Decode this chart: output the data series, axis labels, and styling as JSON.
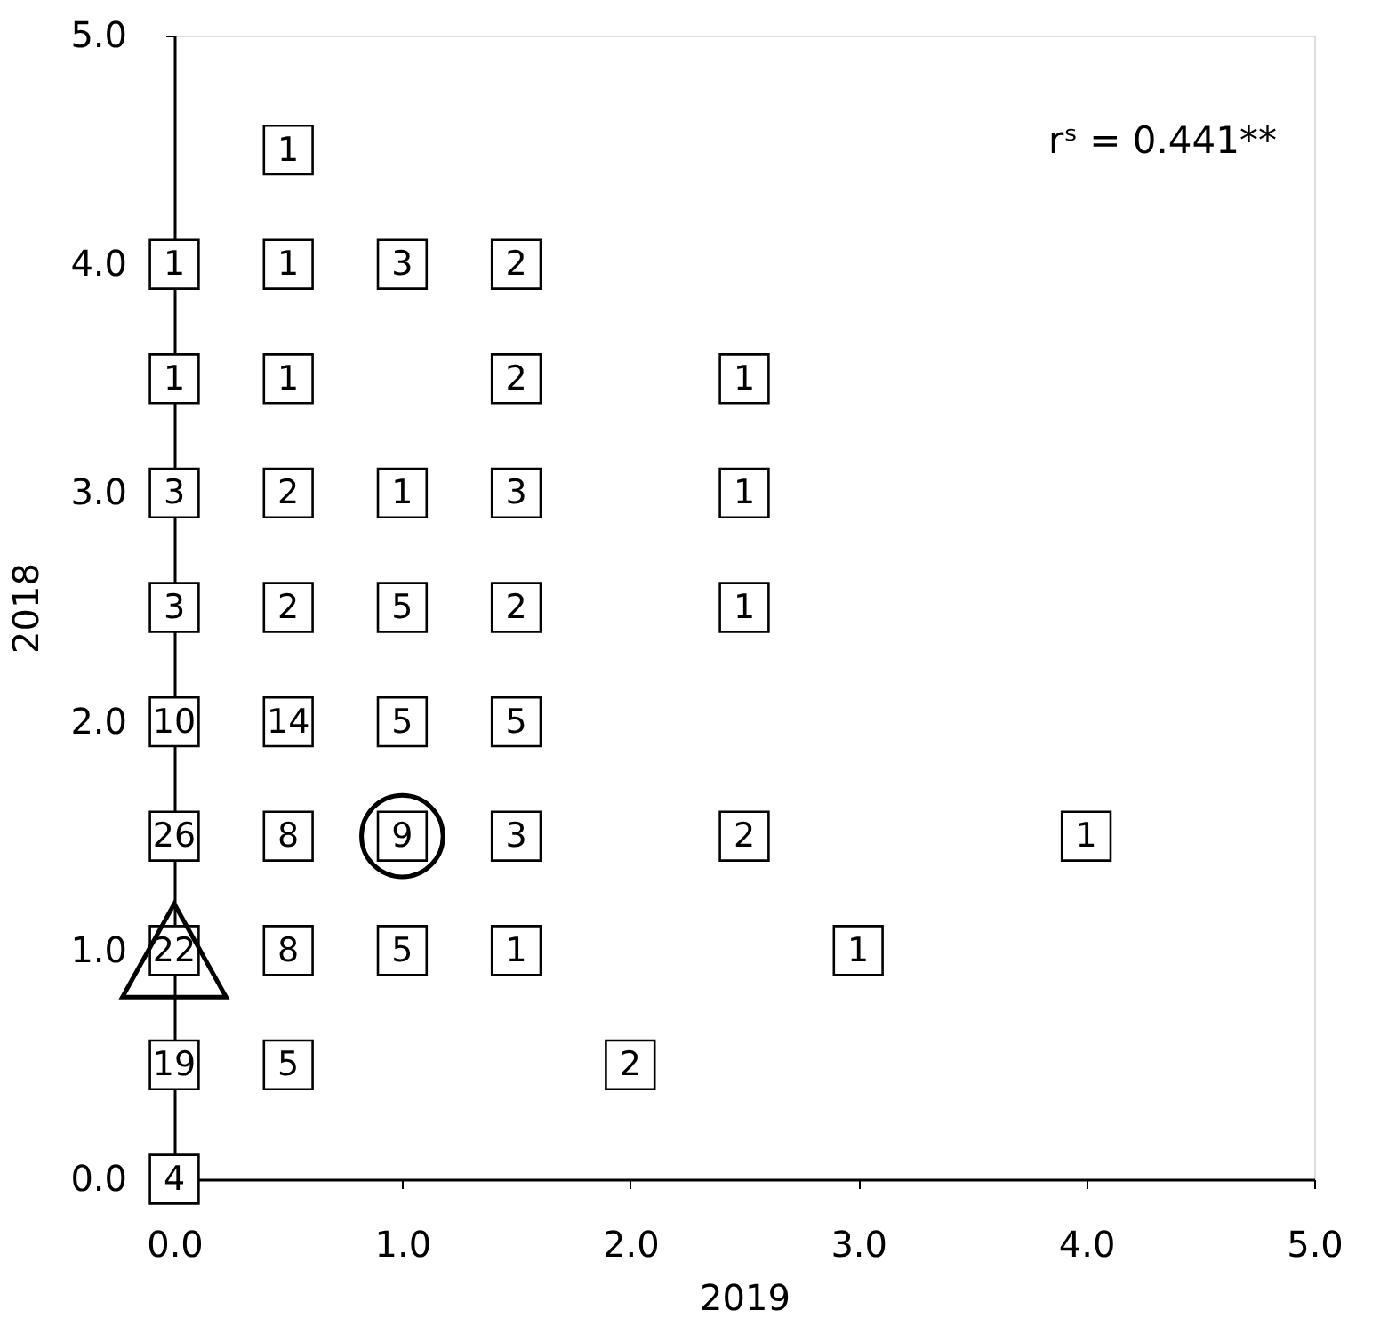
{
  "chart_data": {
    "type": "scatter",
    "xlabel": "2019",
    "ylabel": "2018",
    "xlim": [
      0,
      5
    ],
    "ylim": [
      0,
      5
    ],
    "xticks": [
      {
        "value": 0,
        "label": "0.0"
      },
      {
        "value": 1,
        "label": "1.0"
      },
      {
        "value": 2,
        "label": "2.0"
      },
      {
        "value": 3,
        "label": "3.0"
      },
      {
        "value": 4,
        "label": "4.0"
      },
      {
        "value": 5,
        "label": "5.0"
      }
    ],
    "yticks": [
      {
        "value": 0,
        "label": "0.0"
      },
      {
        "value": 1,
        "label": "1.0"
      },
      {
        "value": 2,
        "label": "2.0"
      },
      {
        "value": 3,
        "label": "3.0"
      },
      {
        "value": 4,
        "label": "4.0"
      },
      {
        "value": 5,
        "label": "5.0"
      }
    ],
    "grid": false,
    "series": [
      {
        "marker": "square",
        "color": "#000000",
        "x": [
          0.5,
          0,
          0.5,
          1.0,
          1.5,
          0,
          0.5,
          1.5,
          2.5,
          0,
          0.5,
          1.0,
          1.5,
          2.5,
          0,
          0.5,
          1.0,
          1.5,
          2.5,
          0,
          0.5,
          1.0,
          1.5,
          0,
          0.5,
          1.0,
          1.5,
          2.5,
          4.0,
          0,
          0.5,
          1.0,
          1.5,
          3.0,
          0,
          0.5,
          2.0,
          0
        ],
        "values": [
          4.5,
          4.0,
          4.0,
          4.0,
          4.0,
          3.5,
          3.5,
          3.5,
          3.5,
          3.0,
          3.0,
          3.0,
          3.0,
          3.0,
          2.5,
          2.5,
          2.5,
          2.5,
          2.5,
          2.0,
          2.0,
          2.0,
          2.0,
          1.5,
          1.5,
          1.5,
          1.5,
          1.5,
          1.5,
          1.0,
          1.0,
          1.0,
          1.0,
          1.0,
          0.5,
          0.5,
          0.5,
          0
        ]
      },
      {
        "marker": "circle",
        "color": "#000000",
        "x": [
          1.0
        ],
        "values": [
          1.5
        ]
      },
      {
        "marker": "triangle",
        "color": "#000000",
        "x": [
          0
        ],
        "values": [
          1.0
        ]
      }
    ],
    "annotations": [
      "rˢ = 0.441**",
      {
        "text": "1",
        "x": 0.5,
        "y": 4.5
      },
      {
        "text": "1",
        "x": 0,
        "y": 4.0
      },
      {
        "text": "1",
        "x": 0.5,
        "y": 4.0
      },
      {
        "text": "3",
        "x": 1.0,
        "y": 4.0
      },
      {
        "text": "2",
        "x": 1.5,
        "y": 4.0
      },
      {
        "text": "1",
        "x": 0,
        "y": 3.5
      },
      {
        "text": "1",
        "x": 0.5,
        "y": 3.5
      },
      {
        "text": "2",
        "x": 1.5,
        "y": 3.5
      },
      {
        "text": "1",
        "x": 2.5,
        "y": 3.5
      },
      {
        "text": "3",
        "x": 0,
        "y": 3.0
      },
      {
        "text": "2",
        "x": 0.5,
        "y": 3.0
      },
      {
        "text": "1",
        "x": 1.0,
        "y": 3.0
      },
      {
        "text": "3",
        "x": 1.5,
        "y": 3.0
      },
      {
        "text": "1",
        "x": 2.5,
        "y": 3.0
      },
      {
        "text": "3",
        "x": 0,
        "y": 2.5
      },
      {
        "text": "2",
        "x": 0.5,
        "y": 2.5
      },
      {
        "text": "5",
        "x": 1.0,
        "y": 2.5
      },
      {
        "text": "2",
        "x": 1.5,
        "y": 2.5
      },
      {
        "text": "1",
        "x": 2.5,
        "y": 2.5
      },
      {
        "text": "10",
        "x": 0,
        "y": 2.0
      },
      {
        "text": "14",
        "x": 0.5,
        "y": 2.0
      },
      {
        "text": "5",
        "x": 1.0,
        "y": 2.0
      },
      {
        "text": "5",
        "x": 1.5,
        "y": 2.0
      },
      {
        "text": "26",
        "x": 0,
        "y": 1.5
      },
      {
        "text": "8",
        "x": 0.5,
        "y": 1.5
      },
      {
        "text": "9",
        "x": 1.0,
        "y": 1.5
      },
      {
        "text": "3",
        "x": 1.5,
        "y": 1.5
      },
      {
        "text": "2",
        "x": 2.5,
        "y": 1.5
      },
      {
        "text": "1",
        "x": 4.0,
        "y": 1.5
      },
      {
        "text": "22",
        "x": 0,
        "y": 1.0
      },
      {
        "text": "8",
        "x": 0.5,
        "y": 1.0
      },
      {
        "text": "5",
        "x": 1.0,
        "y": 1.0
      },
      {
        "text": "1",
        "x": 1.5,
        "y": 1.0
      },
      {
        "text": "1",
        "x": 3.0,
        "y": 1.0
      },
      {
        "text": "19",
        "x": 0,
        "y": 0.5
      },
      {
        "text": "5",
        "x": 0.5,
        "y": 0.5
      },
      {
        "text": "2",
        "x": 2.0,
        "y": 0.5
      },
      {
        "text": "4",
        "x": 0,
        "y": 0
      }
    ]
  }
}
